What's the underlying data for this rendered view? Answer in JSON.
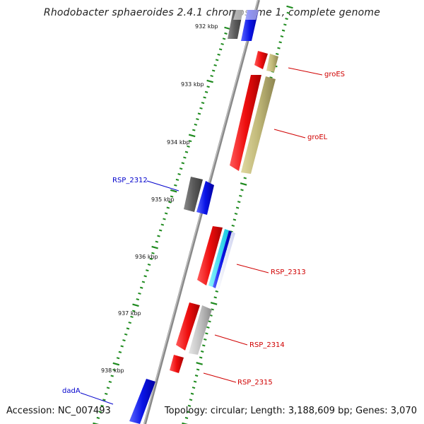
{
  "title": "Rhodobacter sphaeroides 2.4.1 chromosome 1, complete genome",
  "footer": {
    "accession": "Accession: NC_007493",
    "summary": "Topology: circular; Length: 3,188,609 bp; Genes: 3,070"
  },
  "colors": {
    "backbone": "#8a8a8a",
    "forward_cds": "#0a14e6",
    "reverse_cds": "#e60f0f",
    "other_feature": "#5a5a5a",
    "chaperonin": "#b8b070",
    "light_gray": "#b8b8b8",
    "cyan": "#18d8ec",
    "tick": "#1e8a1e",
    "label_red": "#d00000",
    "label_blue": "#0000cc"
  },
  "scale_ticks": [
    "932 kbp",
    "933 kbp",
    "934 kbp",
    "935 kbp",
    "936 kbp",
    "937 kbp",
    "938 kbp"
  ],
  "gene_labels": [
    {
      "text": "groES",
      "color": "red"
    },
    {
      "text": "groEL",
      "color": "red"
    },
    {
      "text": "RSP_2312",
      "color": "blue"
    },
    {
      "text": "RSP_2313",
      "color": "red"
    },
    {
      "text": "RSP_2314",
      "color": "red"
    },
    {
      "text": "RSP_2315",
      "color": "red"
    },
    {
      "text": "dadA",
      "color": "blue"
    }
  ]
}
